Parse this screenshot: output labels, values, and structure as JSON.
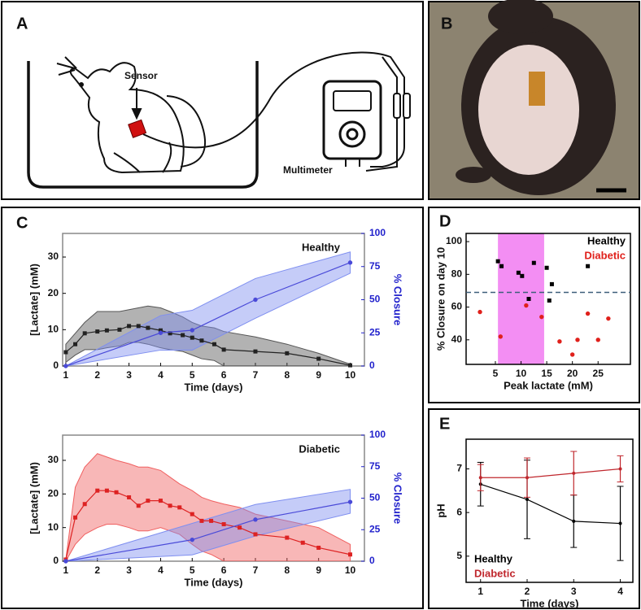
{
  "labels": [
    "A",
    "B",
    "C",
    "D",
    "E"
  ],
  "diagram": {
    "sensor": "Sensor",
    "meter": "Multimeter"
  },
  "chart_data": [
    {
      "type": "line",
      "title": "Healthy",
      "xlabel": "Time (days)",
      "ylabel": "[Lactate] (mM)",
      "y2label": "% Closure",
      "y2color": "#2222cc",
      "xlim": [
        0.9,
        10.45
      ],
      "xticks": [
        1,
        2,
        3,
        4,
        5,
        6,
        7,
        8,
        9,
        10
      ],
      "ylim": [
        0,
        36.5
      ],
      "yticks": [
        0,
        10,
        20,
        30
      ],
      "y2lim": [
        0,
        100
      ],
      "y2ticks": [
        0,
        25,
        50,
        75,
        100
      ],
      "series": [
        {
          "color": "#222222",
          "band_color": "#555555",
          "marker": "square",
          "x": [
            1,
            1.3,
            1.6,
            2,
            2.3,
            2.7,
            3,
            3.3,
            3.6,
            4,
            4.3,
            4.7,
            5,
            5.3,
            5.7,
            6,
            7,
            8,
            9,
            10
          ],
          "values": [
            3.8,
            6,
            9,
            9.5,
            9.8,
            10,
            11,
            11,
            10.5,
            9.8,
            9,
            8.5,
            7.8,
            7,
            6,
            4.5,
            4,
            3.5,
            2,
            0.2
          ],
          "upper": [
            6,
            9,
            12,
            15,
            15,
            15,
            15.5,
            16,
            16.5,
            16,
            15,
            13.5,
            12,
            11,
            10.5,
            9.5,
            8,
            6,
            3.5,
            0.5
          ],
          "lower": [
            1,
            3,
            4.5,
            4.5,
            5,
            5.5,
            6.5,
            6.5,
            6,
            5,
            4.5,
            4,
            3,
            2,
            1.5,
            0,
            0,
            0,
            0,
            0
          ]
        },
        {
          "axis": "y2",
          "color": "#4a4ad8",
          "band_color": "#7f8ff0",
          "marker": "circle",
          "x": [
            1,
            4,
            5,
            7,
            10
          ],
          "values": [
            0,
            25,
            27,
            50,
            78
          ],
          "upper": [
            0,
            38,
            42,
            66,
            86
          ],
          "lower": [
            0,
            12,
            12,
            36,
            70
          ]
        }
      ]
    },
    {
      "type": "line",
      "title": "Diabetic",
      "xlabel": "Time (days)",
      "ylabel": "[Lactate] (mM)",
      "y2label": "% Closure",
      "y2color": "#2222cc",
      "xlim": [
        0.9,
        10.45
      ],
      "xticks": [
        1,
        2,
        3,
        4,
        5,
        6,
        7,
        8,
        9,
        10
      ],
      "ylim": [
        0,
        37.5
      ],
      "yticks": [
        0,
        10,
        20,
        30
      ],
      "y2lim": [
        0,
        100
      ],
      "y2ticks": [
        0,
        25,
        50,
        75,
        100
      ],
      "series": [
        {
          "color": "#dd2222",
          "band_color": "#f06060",
          "marker": "square",
          "x": [
            1,
            1.3,
            1.6,
            2,
            2.3,
            2.6,
            3,
            3.3,
            3.6,
            4,
            4.3,
            4.6,
            5,
            5.3,
            5.6,
            6,
            6.5,
            7,
            8,
            8.5,
            9,
            10
          ],
          "values": [
            0.5,
            13,
            17,
            21,
            21,
            20.5,
            19,
            16.5,
            18,
            18,
            16.5,
            16,
            14,
            12,
            12,
            11,
            10,
            8,
            7,
            5.5,
            4,
            2
          ],
          "upper": [
            0.5,
            22,
            28,
            32,
            31,
            30,
            29,
            28,
            28,
            27,
            25,
            23,
            21,
            19,
            18,
            17,
            16,
            14,
            12,
            11,
            10,
            5
          ],
          "lower": [
            0,
            5,
            8,
            10,
            11,
            11,
            10,
            9,
            9,
            10,
            9,
            8,
            5,
            3,
            2,
            0,
            0,
            0,
            0,
            0,
            0,
            0
          ]
        },
        {
          "axis": "y2",
          "color": "#4a4ad8",
          "band_color": "#7f8ff0",
          "marker": "circle",
          "x": [
            1,
            5,
            7,
            10
          ],
          "values": [
            0,
            17,
            33,
            47
          ],
          "upper": [
            0,
            30,
            45,
            57
          ],
          "lower": [
            0,
            5,
            20,
            38
          ]
        }
      ]
    },
    {
      "type": "scatter",
      "xlabel": "Peak lactate (mM)",
      "ylabel": "% Closure on day 10",
      "legend": "upper right",
      "xlim": [
        -0.7,
        31.3
      ],
      "xticks": [
        5,
        10,
        15,
        20,
        25
      ],
      "ylim": [
        25,
        105
      ],
      "yticks": [
        40,
        60,
        80,
        100
      ],
      "span": [
        5.5,
        14.5
      ],
      "span_color": "#f38ef3",
      "threshold": 69,
      "threshold_color": "#3d5f7a",
      "series": [
        {
          "name": "Healthy",
          "color": "#000000",
          "marker": "square",
          "x": [
            5.5,
            6.2,
            9.5,
            10.2,
            11.5,
            12.5,
            15,
            15.5,
            16,
            23
          ],
          "values": [
            88,
            85,
            81,
            79,
            65,
            87,
            84,
            64,
            74,
            85
          ]
        },
        {
          "name": "Diabetic",
          "color": "#e0201b",
          "marker": "circle",
          "x": [
            2,
            6,
            11,
            14,
            17.5,
            20,
            21,
            23,
            25,
            27
          ],
          "values": [
            57,
            42,
            61,
            54,
            39,
            31,
            40,
            56,
            40,
            53
          ]
        }
      ]
    },
    {
      "type": "line",
      "xlabel": "Time (days)",
      "ylabel": "pH",
      "legend": "lower left",
      "xlim": [
        0.69,
        4.27
      ],
      "xticks": [
        1,
        2,
        3,
        4
      ],
      "ylim": [
        4.4,
        7.68
      ],
      "yticks": [
        5,
        6,
        7
      ],
      "x": [
        1,
        2,
        3,
        4
      ],
      "series": [
        {
          "name": "Healthy",
          "color": "#000000",
          "values": [
            6.65,
            6.3,
            5.8,
            5.75
          ],
          "errors": [
            0.5,
            0.9,
            0.6,
            0.85
          ]
        },
        {
          "name": "Diabetic",
          "color": "#c0272d",
          "values": [
            6.8,
            6.8,
            6.9,
            7.0
          ],
          "errors": [
            0.3,
            0.45,
            0.5,
            0.3
          ]
        }
      ]
    }
  ]
}
